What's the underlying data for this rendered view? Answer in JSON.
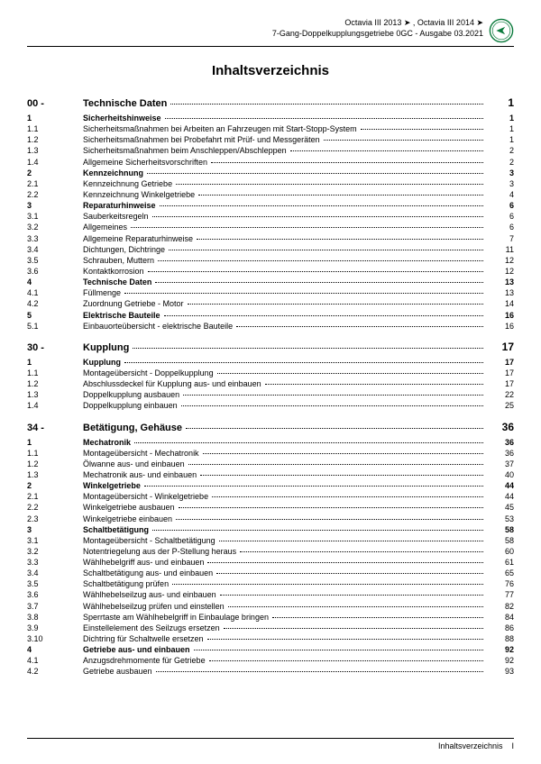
{
  "header": {
    "line1": "Octavia III 2013 ➤ , Octavia III 2014 ➤",
    "line2": "7-Gang-Doppelkupplungsgetriebe 0GC - Ausgabe 03.2021",
    "brand": "ŠKODA"
  },
  "title": "Inhaltsverzeichnis",
  "chapters": [
    {
      "num": "00 -",
      "title": "Technische Daten",
      "page": "1",
      "rows": [
        {
          "n": "1",
          "t": "Sicherheitshinweise",
          "p": "1",
          "b": true
        },
        {
          "n": "1.1",
          "t": "Sicherheitsmaßnahmen bei Arbeiten an Fahrzeugen mit Start-Stopp-System",
          "p": "1"
        },
        {
          "n": "1.2",
          "t": "Sicherheitsmaßnahmen bei Probefahrt mit Prüf- und Messgeräten",
          "p": "1"
        },
        {
          "n": "1.3",
          "t": "Sicherheitsmaßnahmen beim Anschleppen/Abschleppen",
          "p": "2"
        },
        {
          "n": "1.4",
          "t": "Allgemeine Sicherheitsvorschriften",
          "p": "2"
        },
        {
          "n": "2",
          "t": "Kennzeichnung",
          "p": "3",
          "b": true
        },
        {
          "n": "2.1",
          "t": "Kennzeichnung Getriebe",
          "p": "3"
        },
        {
          "n": "2.2",
          "t": "Kennzeichnung Winkelgetriebe",
          "p": "4"
        },
        {
          "n": "3",
          "t": "Reparaturhinweise",
          "p": "6",
          "b": true
        },
        {
          "n": "3.1",
          "t": "Sauberkeitsregeln",
          "p": "6"
        },
        {
          "n": "3.2",
          "t": "Allgemeines",
          "p": "6"
        },
        {
          "n": "3.3",
          "t": "Allgemeine Reparaturhinweise",
          "p": "7"
        },
        {
          "n": "3.4",
          "t": "Dichtungen, Dichtringe",
          "p": "11"
        },
        {
          "n": "3.5",
          "t": "Schrauben, Muttern",
          "p": "12"
        },
        {
          "n": "3.6",
          "t": "Kontaktkorrosion",
          "p": "12"
        },
        {
          "n": "4",
          "t": "Technische Daten",
          "p": "13",
          "b": true
        },
        {
          "n": "4.1",
          "t": "Füllmenge",
          "p": "13"
        },
        {
          "n": "4.2",
          "t": "Zuordnung Getriebe - Motor",
          "p": "14"
        },
        {
          "n": "5",
          "t": "Elektrische Bauteile",
          "p": "16",
          "b": true
        },
        {
          "n": "5.1",
          "t": "Einbauorteübersicht - elektrische Bauteile",
          "p": "16"
        }
      ]
    },
    {
      "num": "30 -",
      "title": "Kupplung",
      "page": "17",
      "rows": [
        {
          "n": "1",
          "t": "Kupplung",
          "p": "17",
          "b": true
        },
        {
          "n": "1.1",
          "t": "Montageübersicht - Doppelkupplung",
          "p": "17"
        },
        {
          "n": "1.2",
          "t": "Abschlussdeckel für Kupplung aus- und einbauen",
          "p": "17"
        },
        {
          "n": "1.3",
          "t": "Doppelkupplung ausbauen",
          "p": "22"
        },
        {
          "n": "1.4",
          "t": "Doppelkupplung einbauen",
          "p": "25"
        }
      ]
    },
    {
      "num": "34 -",
      "title": "Betätigung, Gehäuse",
      "page": "36",
      "rows": [
        {
          "n": "1",
          "t": "Mechatronik",
          "p": "36",
          "b": true
        },
        {
          "n": "1.1",
          "t": "Montageübersicht - Mechatronik",
          "p": "36"
        },
        {
          "n": "1.2",
          "t": "Ölwanne aus- und einbauen",
          "p": "37"
        },
        {
          "n": "1.3",
          "t": "Mechatronik aus- und einbauen",
          "p": "40"
        },
        {
          "n": "2",
          "t": "Winkelgetriebe",
          "p": "44",
          "b": true
        },
        {
          "n": "2.1",
          "t": "Montageübersicht - Winkelgetriebe",
          "p": "44"
        },
        {
          "n": "2.2",
          "t": "Winkelgetriebe ausbauen",
          "p": "45"
        },
        {
          "n": "2.3",
          "t": "Winkelgetriebe einbauen",
          "p": "53"
        },
        {
          "n": "3",
          "t": "Schaltbetätigung",
          "p": "58",
          "b": true
        },
        {
          "n": "3.1",
          "t": "Montageübersicht - Schaltbetätigung",
          "p": "58"
        },
        {
          "n": "3.2",
          "t": "Notentriegelung aus der P-Stellung heraus",
          "p": "60"
        },
        {
          "n": "3.3",
          "t": "Wählhebelgriff aus- und einbauen",
          "p": "61"
        },
        {
          "n": "3.4",
          "t": "Schaltbetätigung aus- und einbauen",
          "p": "65"
        },
        {
          "n": "3.5",
          "t": "Schaltbetätigung prüfen",
          "p": "76"
        },
        {
          "n": "3.6",
          "t": "Wählhebelseilzug aus- und einbauen",
          "p": "77"
        },
        {
          "n": "3.7",
          "t": "Wählhebelseilzug prüfen und einstellen",
          "p": "82"
        },
        {
          "n": "3.8",
          "t": "Sperrtaste am Wählhebelgriff in Einbaulage bringen",
          "p": "84"
        },
        {
          "n": "3.9",
          "t": "Einstellelement des Seilzugs ersetzen",
          "p": "86"
        },
        {
          "n": "3.10",
          "t": "Dichtring für Schaltwelle ersetzen",
          "p": "88"
        },
        {
          "n": "4",
          "t": "Getriebe aus- und einbauen",
          "p": "92",
          "b": true
        },
        {
          "n": "4.1",
          "t": "Anzugsdrehmomente für Getriebe",
          "p": "92"
        },
        {
          "n": "4.2",
          "t": "Getriebe ausbauen",
          "p": "93"
        }
      ]
    }
  ],
  "footer": {
    "label": "Inhaltsverzeichnis",
    "page": "I"
  }
}
